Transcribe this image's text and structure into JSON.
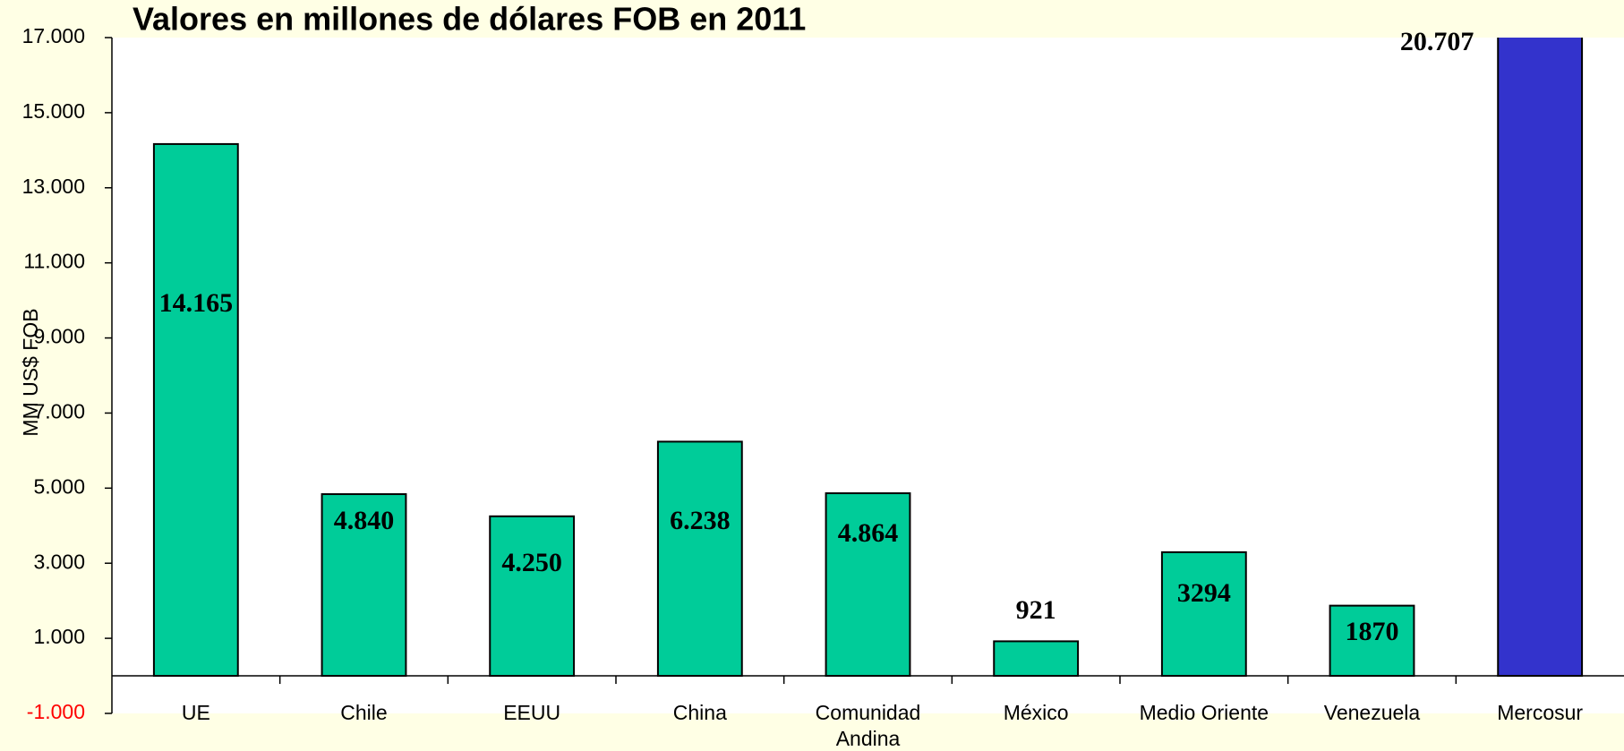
{
  "chart_data": {
    "type": "bar",
    "title": "Valores en millones de dólares FOB en 2011",
    "y_label": "MM US$ FOB",
    "categories": [
      "UE",
      "Chile",
      "EEUU",
      "China",
      "Comunidad Andina",
      "México",
      "Medio Oriente",
      "Venezuela",
      "Mercosur"
    ],
    "values": [
      14165,
      4840,
      4250,
      6238,
      4864,
      921,
      3294,
      1870,
      20707
    ],
    "value_labels": [
      "14.165",
      "4.840",
      "4.250",
      "6.238",
      "4.864",
      "921",
      "3294",
      "1870",
      "20.707"
    ],
    "colors": [
      "#00cc99",
      "#00cc99",
      "#00cc99",
      "#00cc99",
      "#00cc99",
      "#00cc99",
      "#00cc99",
      "#00cc99",
      "#3333cc"
    ],
    "ylim": [
      -1000,
      17000
    ],
    "yticks": [
      {
        "value": -1000,
        "label": "-1.000"
      },
      {
        "value": 1000,
        "label": "1.000"
      },
      {
        "value": 3000,
        "label": "3.000"
      },
      {
        "value": 5000,
        "label": "5.000"
      },
      {
        "value": 7000,
        "label": "7.000"
      },
      {
        "value": 9000,
        "label": "9.000"
      },
      {
        "value": 11000,
        "label": "11.000"
      },
      {
        "value": 13000,
        "label": "13.000"
      },
      {
        "value": 15000,
        "label": "15.000"
      },
      {
        "value": 17000,
        "label": "17.000"
      }
    ],
    "grid": false
  }
}
